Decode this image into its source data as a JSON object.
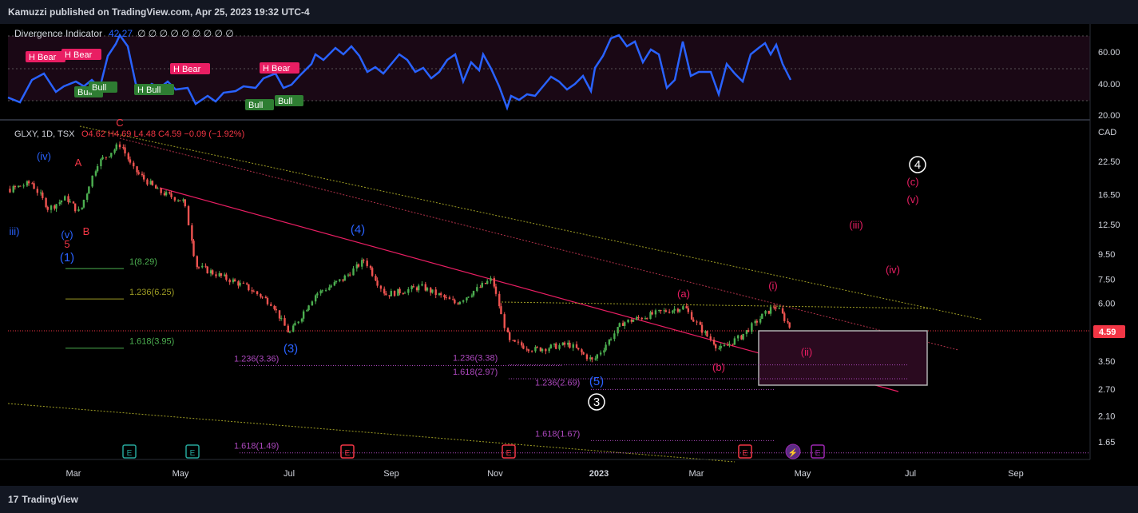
{
  "header": {
    "publisher": "Kamuzzi published on TradingView.com, Apr 25, 2023 19:32 UTC-4"
  },
  "footer": {
    "brand": "TradingView"
  },
  "indicator": {
    "name": "Divergence Indicator",
    "value": "42.27",
    "extra": "∅ ∅ ∅ ∅ ∅ ∅ ∅ ∅ ∅",
    "ticks": [
      "60.00",
      "40.00",
      "20.00"
    ],
    "line_color": "#2962ff",
    "labels": [
      {
        "text": "H Bear",
        "kind": "bear"
      },
      {
        "text": "H Bear",
        "kind": "bear"
      },
      {
        "text": "H Bear",
        "kind": "bear"
      },
      {
        "text": "H Bear",
        "kind": "bear"
      },
      {
        "text": "Bull",
        "kind": "bull"
      },
      {
        "text": "Bull",
        "kind": "bull"
      },
      {
        "text": "H Bull",
        "kind": "bull"
      },
      {
        "text": "Bull",
        "kind": "bull"
      },
      {
        "text": "Bull",
        "kind": "bull"
      }
    ]
  },
  "chart_data": {
    "type": "candlestick",
    "symbol": "GLXY, 1D, TSX",
    "ohlc_text": "O4.62 H4.69 L4.48 C4.59 −0.09 (−1.92%)",
    "currency": "CAD",
    "last_price": "4.59",
    "y_scale": "log",
    "y_ticks": [
      "22.50",
      "16.50",
      "12.50",
      "9.50",
      "7.50",
      "6.00",
      "3.50",
      "2.70",
      "2.10",
      "1.65"
    ],
    "x_ticks": [
      "Mar",
      "May",
      "Jul",
      "Sep",
      "Nov",
      "2023",
      "Mar",
      "May",
      "Jul",
      "Sep"
    ],
    "price_path": [
      {
        "x": "2022-01-01",
        "y": 15.0
      },
      {
        "x": "2022-01-20",
        "y": 17.0
      },
      {
        "x": "2022-02-05",
        "y": 18.5
      },
      {
        "x": "2022-02-15",
        "y": 14.5
      },
      {
        "x": "2022-02-25",
        "y": 16.0
      },
      {
        "x": "2022-03-05",
        "y": 14.0
      },
      {
        "x": "2022-03-15",
        "y": 22.0
      },
      {
        "x": "2022-03-29",
        "y": 26.5
      },
      {
        "x": "2022-04-05",
        "y": 21.0
      },
      {
        "x": "2022-04-20",
        "y": 17.0
      },
      {
        "x": "2022-05-05",
        "y": 15.5
      },
      {
        "x": "2022-05-12",
        "y": 8.5
      },
      {
        "x": "2022-05-25",
        "y": 7.8
      },
      {
        "x": "2022-06-10",
        "y": 7.0
      },
      {
        "x": "2022-06-25",
        "y": 6.0
      },
      {
        "x": "2022-07-05",
        "y": 4.5
      },
      {
        "x": "2022-07-20",
        "y": 6.5
      },
      {
        "x": "2022-08-05",
        "y": 7.5
      },
      {
        "x": "2022-08-18",
        "y": 9.0
      },
      {
        "x": "2022-08-30",
        "y": 6.5
      },
      {
        "x": "2022-09-20",
        "y": 7.0
      },
      {
        "x": "2022-10-10",
        "y": 6.0
      },
      {
        "x": "2022-10-31",
        "y": 7.5
      },
      {
        "x": "2022-11-10",
        "y": 4.2
      },
      {
        "x": "2022-11-25",
        "y": 3.9
      },
      {
        "x": "2022-12-15",
        "y": 4.1
      },
      {
        "x": "2022-12-29",
        "y": 3.5
      },
      {
        "x": "2023-01-15",
        "y": 5.0
      },
      {
        "x": "2023-02-05",
        "y": 5.5
      },
      {
        "x": "2023-02-20",
        "y": 5.8
      },
      {
        "x": "2023-03-01",
        "y": 4.8
      },
      {
        "x": "2023-03-13",
        "y": 3.9
      },
      {
        "x": "2023-03-25",
        "y": 4.4
      },
      {
        "x": "2023-04-05",
        "y": 5.2
      },
      {
        "x": "2023-04-14",
        "y": 5.9
      },
      {
        "x": "2023-04-25",
        "y": 4.59
      }
    ],
    "fib_levels": [
      {
        "label": "1(8.29)",
        "y": 8.29,
        "color": "#4caf50"
      },
      {
        "label": "1.236(6.25)",
        "y": 6.25,
        "color": "#9e9d24"
      },
      {
        "label": "1.618(3.95)",
        "y": 3.95,
        "color": "#4caf50"
      },
      {
        "label": "1.236(3.36)",
        "y": 3.36,
        "color": "#ab47bc"
      },
      {
        "label": "1.236(3.38)",
        "y": 3.38,
        "color": "#ab47bc"
      },
      {
        "label": "1.618(2.97)",
        "y": 2.97,
        "color": "#ab47bc"
      },
      {
        "label": "1.236(2.69)",
        "y": 2.69,
        "color": "#ab47bc"
      },
      {
        "label": "1.618(1.67)",
        "y": 1.67,
        "color": "#ab47bc"
      },
      {
        "label": "1.618(1.49)",
        "y": 1.49,
        "color": "#ab47bc"
      }
    ],
    "wave_labels": [
      {
        "text": "(iv)",
        "color": "#2962ff"
      },
      {
        "text": "iii)",
        "color": "#2962ff"
      },
      {
        "text": "(v)",
        "color": "#2962ff"
      },
      {
        "text": "5",
        "color": "#f23645"
      },
      {
        "text": "(1)",
        "color": "#2962ff"
      },
      {
        "text": "A",
        "color": "#f23645"
      },
      {
        "text": "B",
        "color": "#f23645"
      },
      {
        "text": "C",
        "color": "#f23645"
      },
      {
        "text": "(4)",
        "color": "#2962ff"
      },
      {
        "text": "(3)",
        "color": "#2962ff"
      },
      {
        "text": "(5)",
        "color": "#2962ff"
      },
      {
        "text": "3",
        "color": "#ffffff"
      },
      {
        "text": "(a)",
        "color": "#e91e63"
      },
      {
        "text": "(b)",
        "color": "#e91e63"
      },
      {
        "text": "(i)",
        "color": "#e91e63"
      },
      {
        "text": "(ii)",
        "color": "#e91e63"
      },
      {
        "text": "(iii)",
        "color": "#e91e63"
      },
      {
        "text": "(iv)",
        "color": "#e91e63"
      },
      {
        "text": "(v)",
        "color": "#e91e63"
      },
      {
        "text": "(c)",
        "color": "#e91e63"
      },
      {
        "text": "4",
        "color": "#ffffff"
      }
    ],
    "events": [
      "E",
      "E",
      "E",
      "E",
      "E",
      "⚡",
      "E"
    ]
  }
}
